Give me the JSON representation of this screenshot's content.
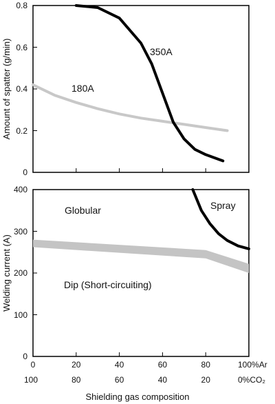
{
  "chart_data": [
    {
      "type": "line",
      "ylabel": "Amount of spatter (g/min)",
      "xlim": [
        0,
        100
      ],
      "ylim": [
        0,
        0.8
      ],
      "yticks": [
        "0",
        "0.2",
        "0.4",
        "0.6",
        "0.8"
      ],
      "grid": false,
      "series": [
        {
          "name": "350A",
          "color": "#000000",
          "x": [
            20,
            30,
            40,
            50,
            55,
            60,
            65,
            70,
            75,
            80,
            88
          ],
          "y": [
            0.8,
            0.79,
            0.74,
            0.62,
            0.52,
            0.38,
            0.24,
            0.16,
            0.11,
            0.085,
            0.055
          ]
        },
        {
          "name": "180A",
          "color": "#c8c8c8",
          "x": [
            0,
            10,
            20,
            30,
            40,
            50,
            60,
            70,
            80,
            90
          ],
          "y": [
            0.42,
            0.37,
            0.335,
            0.305,
            0.28,
            0.26,
            0.245,
            0.23,
            0.215,
            0.2
          ]
        }
      ]
    },
    {
      "type": "line",
      "xlabel": "Shielding gas composition",
      "ylabel": "Welding current (A)",
      "xlim": [
        0,
        100
      ],
      "ylim": [
        0,
        400
      ],
      "yticks": [
        "0",
        "100",
        "200",
        "300",
        "400"
      ],
      "xticks_ar": [
        "0",
        "20",
        "40",
        "60",
        "80",
        "100%Ar"
      ],
      "xticks_co2": [
        "100",
        "80",
        "60",
        "40",
        "20",
        "0%CO₂"
      ],
      "grid": false,
      "regions": [
        "Globular",
        "Spray",
        "Dip (Short-circuiting)"
      ],
      "series": [
        {
          "color": "#000000",
          "x": [
            74,
            78,
            82,
            86,
            90,
            95,
            100
          ],
          "y": [
            400,
            350,
            318,
            294,
            278,
            265,
            258
          ]
        }
      ],
      "band": {
        "color": "#c4c4c4",
        "x": [
          0,
          80,
          100
        ],
        "upper": [
          280,
          255,
          222
        ],
        "lower": [
          262,
          235,
          200
        ]
      }
    }
  ]
}
